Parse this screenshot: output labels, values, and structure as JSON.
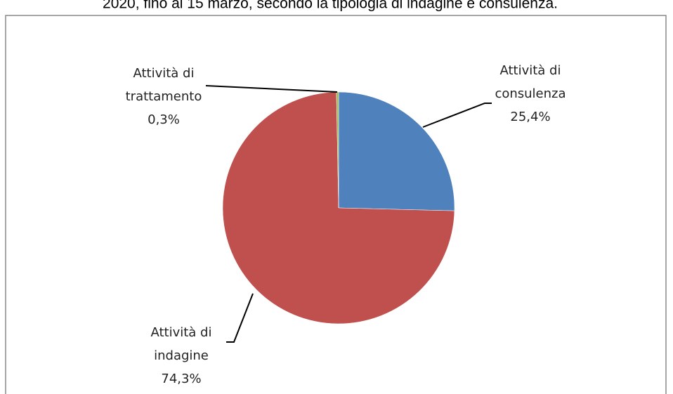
{
  "chart_data": {
    "type": "pie",
    "title": "2020, fino al 15 marzo, secondo la tipologia di indagine e consulenza.",
    "categories": [
      "Attività di consulenza",
      "Attività di indagine",
      "Attività di trattamento"
    ],
    "values": [
      25.4,
      74.3,
      0.3
    ],
    "value_labels": [
      "25,4%",
      "74,3%",
      "0,3%"
    ],
    "colors": [
      "#4f81bd",
      "#c0504d",
      "#9bbb59"
    ]
  }
}
